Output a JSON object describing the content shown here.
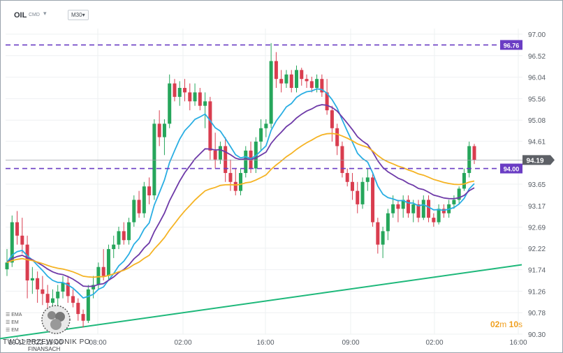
{
  "header": {
    "symbol": "OIL",
    "exchange": "CMD",
    "timeframe": "M30",
    "dropdown_glyph": "▾"
  },
  "timer": {
    "minutes": "02",
    "m": "m",
    "seconds": "10",
    "s": "s"
  },
  "watermark": {
    "line1": "TWÓJ PRZEWODNIK PO",
    "line2": "FINANSACH"
  },
  "legend": {
    "items": [
      "EMA",
      "EM",
      "EM"
    ]
  },
  "colors": {
    "bull": "#26a65b",
    "bear": "#d93d4f",
    "ema_fast": "#29aee3",
    "ema_mid": "#6e3aa8",
    "ema_slow": "#f5b323",
    "trendline": "#1db87a",
    "hline": "#6a3dc4",
    "price": "#5d6066"
  },
  "chart_data": {
    "type": "candlestick",
    "title": "",
    "xlabel": "",
    "ylabel": "",
    "ylim": [
      90.3,
      97.0
    ],
    "x_ticks": [
      "08:00",
      "02:00",
      "16:00",
      "09:00",
      "02:00",
      "16:00"
    ],
    "x_start_label": "19.12.2022 15:00",
    "y_ticks": [
      97.0,
      96.52,
      96.04,
      95.56,
      95.08,
      94.61,
      93.65,
      93.17,
      92.69,
      92.22,
      91.74,
      91.26,
      90.78,
      90.3
    ],
    "levels": [
      {
        "value": 96.76,
        "label": "96.76"
      },
      {
        "value": 94.0,
        "label": "94.00"
      }
    ],
    "current_price": {
      "value": 94.19,
      "label": "94.19"
    },
    "candles": [
      [
        91.75,
        92.2,
        91.6,
        91.9
      ],
      [
        91.9,
        92.95,
        91.8,
        92.8
      ],
      [
        92.8,
        93.05,
        92.3,
        92.5
      ],
      [
        92.5,
        92.9,
        92.1,
        92.3
      ],
      [
        92.3,
        92.5,
        91.1,
        91.5
      ],
      [
        91.5,
        91.8,
        91.2,
        91.55
      ],
      [
        91.55,
        91.7,
        91.0,
        91.3
      ],
      [
        91.3,
        91.6,
        90.95,
        91.2
      ],
      [
        91.2,
        91.4,
        90.8,
        91.0
      ],
      [
        91.0,
        91.3,
        90.85,
        91.1
      ],
      [
        91.1,
        91.4,
        90.9,
        91.25
      ],
      [
        91.25,
        91.6,
        91.1,
        91.45
      ],
      [
        91.45,
        91.6,
        91.0,
        91.15
      ],
      [
        91.15,
        91.3,
        90.9,
        91.0
      ],
      [
        91.0,
        91.1,
        90.6,
        90.75
      ],
      [
        90.75,
        90.85,
        90.45,
        90.6
      ],
      [
        90.6,
        91.4,
        90.55,
        91.3
      ],
      [
        91.3,
        91.6,
        91.1,
        91.4
      ],
      [
        91.4,
        91.9,
        91.3,
        91.8
      ],
      [
        91.8,
        92.2,
        91.5,
        91.6
      ],
      [
        91.6,
        92.3,
        91.5,
        92.2
      ],
      [
        92.2,
        92.5,
        92.0,
        92.3
      ],
      [
        92.3,
        92.7,
        92.2,
        92.6
      ],
      [
        92.6,
        92.8,
        92.3,
        92.4
      ],
      [
        92.4,
        92.9,
        92.3,
        92.8
      ],
      [
        92.8,
        93.4,
        92.7,
        93.3
      ],
      [
        93.3,
        93.5,
        92.9,
        93.0
      ],
      [
        93.0,
        93.7,
        92.9,
        93.6
      ],
      [
        93.6,
        93.8,
        93.2,
        93.4
      ],
      [
        93.4,
        95.1,
        93.3,
        95.0
      ],
      [
        95.0,
        95.3,
        94.5,
        94.7
      ],
      [
        94.7,
        95.1,
        94.3,
        95.0
      ],
      [
        95.0,
        96.1,
        94.9,
        95.9
      ],
      [
        95.9,
        96.0,
        95.5,
        95.6
      ],
      [
        95.6,
        95.95,
        95.4,
        95.8
      ],
      [
        95.8,
        96.0,
        95.5,
        95.7
      ],
      [
        95.7,
        95.9,
        95.3,
        95.5
      ],
      [
        95.5,
        95.9,
        95.4,
        95.7
      ],
      [
        95.7,
        95.8,
        95.3,
        95.4
      ],
      [
        95.4,
        95.7,
        94.9,
        95.5
      ],
      [
        95.5,
        95.6,
        94.2,
        94.4
      ],
      [
        94.4,
        94.8,
        94.0,
        94.2
      ],
      [
        94.2,
        94.6,
        94.1,
        94.5
      ],
      [
        94.5,
        94.7,
        93.7,
        93.9
      ],
      [
        93.9,
        94.2,
        93.5,
        93.7
      ],
      [
        93.7,
        94.0,
        93.4,
        93.5
      ],
      [
        93.5,
        94.0,
        93.4,
        93.9
      ],
      [
        93.9,
        94.5,
        93.8,
        94.4
      ],
      [
        94.4,
        94.6,
        93.9,
        94.0
      ],
      [
        94.0,
        94.7,
        93.9,
        94.6
      ],
      [
        94.6,
        95.1,
        94.4,
        94.9
      ],
      [
        94.9,
        95.1,
        94.7,
        95.0
      ],
      [
        95.0,
        96.8,
        94.9,
        96.4
      ],
      [
        96.4,
        96.6,
        95.8,
        96.0
      ],
      [
        96.0,
        96.2,
        95.7,
        95.9
      ],
      [
        95.9,
        96.2,
        95.8,
        96.1
      ],
      [
        96.1,
        96.2,
        95.7,
        95.8
      ],
      [
        95.8,
        96.3,
        95.7,
        96.2
      ],
      [
        96.2,
        96.25,
        95.85,
        96.0
      ],
      [
        96.0,
        96.1,
        95.8,
        95.95
      ],
      [
        95.95,
        96.05,
        95.7,
        95.8
      ],
      [
        95.8,
        96.1,
        95.7,
        96.0
      ],
      [
        96.0,
        96.1,
        95.6,
        95.7
      ],
      [
        95.7,
        96.0,
        95.2,
        95.3
      ],
      [
        95.3,
        95.4,
        94.6,
        94.9
      ],
      [
        94.9,
        95.0,
        94.3,
        94.5
      ],
      [
        94.5,
        94.6,
        93.8,
        93.9
      ],
      [
        93.9,
        94.0,
        93.6,
        93.7
      ],
      [
        93.7,
        93.9,
        93.3,
        93.5
      ],
      [
        93.5,
        93.7,
        93.0,
        93.2
      ],
      [
        93.2,
        93.8,
        93.1,
        93.7
      ],
      [
        93.7,
        94.0,
        93.5,
        93.8
      ],
      [
        93.8,
        93.9,
        92.7,
        92.8
      ],
      [
        92.8,
        92.9,
        92.1,
        92.3
      ],
      [
        92.3,
        92.7,
        92.0,
        92.6
      ],
      [
        92.6,
        93.1,
        92.4,
        93.0
      ],
      [
        93.0,
        93.4,
        92.9,
        93.2
      ],
      [
        93.2,
        93.3,
        92.8,
        93.1
      ],
      [
        93.1,
        93.4,
        92.9,
        93.3
      ],
      [
        93.3,
        93.4,
        92.9,
        93.0
      ],
      [
        93.0,
        93.3,
        92.8,
        93.2
      ],
      [
        93.2,
        93.3,
        92.8,
        92.9
      ],
      [
        92.9,
        93.4,
        92.85,
        93.3
      ],
      [
        93.3,
        93.4,
        92.8,
        92.9
      ],
      [
        92.9,
        93.0,
        92.7,
        92.8
      ],
      [
        92.8,
        93.2,
        92.75,
        93.1
      ],
      [
        93.1,
        93.2,
        92.9,
        93.0
      ],
      [
        93.0,
        93.3,
        92.9,
        93.2
      ],
      [
        93.2,
        93.4,
        93.1,
        93.3
      ],
      [
        93.3,
        93.6,
        93.2,
        93.55
      ],
      [
        93.55,
        94.0,
        93.5,
        93.9
      ],
      [
        93.9,
        94.6,
        93.8,
        94.5
      ],
      [
        94.5,
        94.55,
        94.1,
        94.19
      ]
    ],
    "ema_fast_name": "EMA",
    "trendline": {
      "start": [
        0,
        90.2
      ],
      "end": [
        104,
        91.85
      ]
    }
  }
}
